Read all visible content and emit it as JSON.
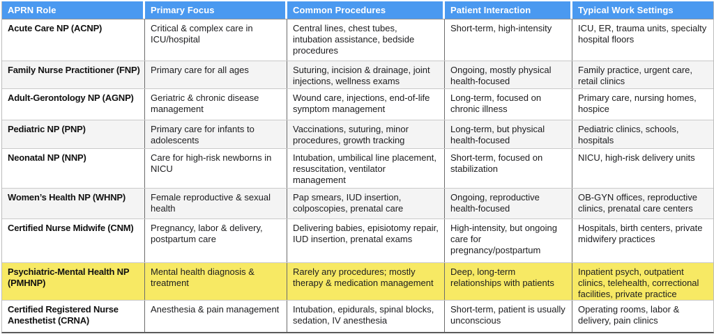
{
  "colors": {
    "header_bg": "#4a99f0",
    "header_text": "#ffffff",
    "stripe_bg": "#f4f4f4",
    "highlight_bg": "#f7e964"
  },
  "table": {
    "columns": [
      "APRN Role",
      "Primary Focus",
      "Common Procedures",
      "Patient Interaction",
      "Typical Work Settings"
    ],
    "rows": [
      {
        "role": "Acute Care NP (ACNP)",
        "focus": "Critical & complex care in ICU/hospital",
        "procedures": "Central lines, chest tubes, intubation assistance, bedside procedures",
        "interaction": "Short-term, high-intensity",
        "settings": "ICU, ER, trauma units, specialty hospital floors"
      },
      {
        "role": "Family Nurse Practitioner (FNP)",
        "focus": "Primary care for all ages",
        "procedures": "Suturing, incision & drainage, joint injections, wellness exams",
        "interaction": "Ongoing, mostly physical health-focused",
        "settings": "Family practice, urgent care, retail clinics"
      },
      {
        "role": "Adult-Gerontology NP (AGNP)",
        "focus": "Geriatric & chronic disease management",
        "procedures": "Wound care, injections, end-of-life symptom management",
        "interaction": "Long-term, focused on chronic illness",
        "settings": "Primary care, nursing homes, hospice"
      },
      {
        "role": "Pediatric NP (PNP)",
        "focus": "Primary care for infants to adolescents",
        "procedures": "Vaccinations, suturing, minor procedures, growth tracking",
        "interaction": "Long-term, but physical health-focused",
        "settings": "Pediatric clinics, schools, hospitals"
      },
      {
        "role": "Neonatal NP (NNP)",
        "focus": "Care for high-risk newborns in NICU",
        "procedures": "Intubation, umbilical line placement, resuscitation, ventilator management",
        "interaction": "Short-term, focused on stabilization",
        "settings": "NICU, high-risk delivery units"
      },
      {
        "role": "Women’s Health NP (WHNP)",
        "focus": "Female reproductive & sexual health",
        "procedures": "Pap smears, IUD insertion, colposcopies, prenatal care",
        "interaction": "Ongoing, reproductive health-focused",
        "settings": "OB-GYN offices, reproductive clinics, prenatal care centers"
      },
      {
        "role": "Certified Nurse Midwife (CNM)",
        "focus": "Pregnancy, labor & delivery, postpartum care",
        "procedures": "Delivering babies, episiotomy repair, IUD insertion, prenatal exams",
        "interaction": "High-intensity, but ongoing care for pregnancy/postpartum",
        "settings": "Hospitals, birth centers, private midwifery practices"
      },
      {
        "role": "Psychiatric-Mental Health NP (PMHNP)",
        "focus": "Mental health diagnosis & treatment",
        "procedures": "Rarely any procedures; mostly therapy & medication management",
        "interaction": "Deep, long-term relationships with patients",
        "settings": "Inpatient psych, outpatient clinics, telehealth, correctional facilities, private practice"
      },
      {
        "role": "Certified Registered Nurse Anesthetist (CRNA)",
        "focus": "Anesthesia & pain management",
        "procedures": "Intubation, epidurals, spinal blocks, sedation, IV anesthesia",
        "interaction": "Short-term, patient is usually unconscious",
        "settings": "Operating rooms, labor & delivery, pain clinics"
      }
    ]
  }
}
